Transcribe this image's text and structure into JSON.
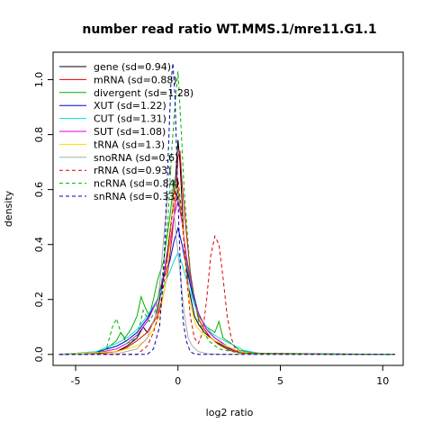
{
  "chart_data": {
    "type": "line",
    "title": "number read ratio WT.MMS.1/mre11.G1.1",
    "xlabel": "log2 ratio",
    "ylabel": "density",
    "xlim": [
      -6.1,
      11.0
    ],
    "ylim": [
      -0.04,
      1.1
    ],
    "xticks": [
      -5,
      0,
      5,
      10
    ],
    "yticks": [
      0.0,
      0.2,
      0.4,
      0.6,
      0.8,
      1.0
    ],
    "grid": false,
    "legend_position": "top-left",
    "series": [
      {
        "name": "gene (sd=0.94)",
        "color": "#000000",
        "dash": "solid",
        "x": [
          -5.8,
          -4.0,
          -3.0,
          -2.5,
          -2.0,
          -1.7,
          -1.5,
          -1.2,
          -1.0,
          -0.8,
          -0.5,
          -0.3,
          -0.1,
          0.0,
          0.1,
          0.2,
          0.3,
          0.5,
          0.8,
          1.0,
          1.3,
          1.6,
          2.0,
          2.5,
          3.0,
          4.0,
          10.6
        ],
        "y": [
          0.0,
          0.003,
          0.01,
          0.03,
          0.06,
          0.1,
          0.08,
          0.12,
          0.16,
          0.24,
          0.38,
          0.5,
          0.66,
          0.78,
          0.7,
          0.55,
          0.4,
          0.25,
          0.14,
          0.11,
          0.08,
          0.06,
          0.04,
          0.02,
          0.01,
          0.002,
          0.0
        ]
      },
      {
        "name": "mRNA (sd=0.88)",
        "color": "#df0000",
        "dash": "solid",
        "x": [
          -5.8,
          -4.0,
          -3.0,
          -2.5,
          -2.0,
          -1.5,
          -1.0,
          -0.7,
          -0.5,
          -0.3,
          -0.1,
          0.0,
          0.1,
          0.2,
          0.4,
          0.6,
          0.8,
          1.0,
          1.3,
          1.6,
          2.0,
          2.5,
          3.0,
          4.0,
          10.6
        ],
        "y": [
          0.0,
          0.003,
          0.01,
          0.025,
          0.05,
          0.08,
          0.14,
          0.22,
          0.3,
          0.42,
          0.58,
          0.72,
          0.74,
          0.62,
          0.45,
          0.3,
          0.2,
          0.13,
          0.09,
          0.06,
          0.035,
          0.015,
          0.007,
          0.001,
          0.0
        ]
      },
      {
        "name": "divergent (sd=1.28)",
        "color": "#00b000",
        "dash": "solid",
        "x": [
          -5.8,
          -4.0,
          -3.5,
          -3.0,
          -2.8,
          -2.6,
          -2.3,
          -2.0,
          -1.8,
          -1.6,
          -1.4,
          -1.2,
          -1.0,
          -0.7,
          -0.4,
          -0.2,
          0.0,
          0.2,
          0.4,
          0.6,
          1.0,
          1.4,
          1.8,
          2.0,
          2.2,
          2.6,
          3.0,
          4.0,
          10.6
        ],
        "y": [
          0.0,
          0.005,
          0.02,
          0.05,
          0.08,
          0.06,
          0.09,
          0.14,
          0.21,
          0.17,
          0.14,
          0.2,
          0.27,
          0.34,
          0.5,
          0.63,
          0.6,
          0.48,
          0.35,
          0.26,
          0.14,
          0.1,
          0.08,
          0.12,
          0.06,
          0.04,
          0.015,
          0.003,
          0.0
        ]
      },
      {
        "name": "XUT (sd=1.22)",
        "color": "#0000dd",
        "dash": "solid",
        "x": [
          -5.8,
          -4.0,
          -3.0,
          -2.5,
          -2.0,
          -1.5,
          -1.0,
          -0.7,
          -0.4,
          -0.2,
          0.0,
          0.2,
          0.4,
          0.7,
          1.0,
          1.4,
          1.8,
          2.2,
          2.6,
          3.0,
          4.0,
          10.6
        ],
        "y": [
          0.0,
          0.008,
          0.03,
          0.05,
          0.08,
          0.13,
          0.2,
          0.28,
          0.34,
          0.41,
          0.46,
          0.4,
          0.32,
          0.22,
          0.15,
          0.09,
          0.06,
          0.04,
          0.02,
          0.01,
          0.002,
          0.0
        ]
      },
      {
        "name": "CUT (sd=1.31)",
        "color": "#00dddd",
        "dash": "solid",
        "x": [
          -5.8,
          -4.0,
          -3.0,
          -2.5,
          -2.0,
          -1.5,
          -1.0,
          -0.7,
          -0.4,
          -0.2,
          0.0,
          0.2,
          0.5,
          0.8,
          1.2,
          1.6,
          2.0,
          2.4,
          2.8,
          3.2,
          4.0,
          10.6
        ],
        "y": [
          0.0,
          0.01,
          0.04,
          0.06,
          0.09,
          0.14,
          0.2,
          0.25,
          0.3,
          0.34,
          0.37,
          0.33,
          0.25,
          0.18,
          0.12,
          0.08,
          0.06,
          0.045,
          0.03,
          0.015,
          0.004,
          0.0
        ]
      },
      {
        "name": "SUT (sd=1.08)",
        "color": "#dd00dd",
        "dash": "solid",
        "x": [
          -5.8,
          -4.0,
          -3.0,
          -2.5,
          -2.0,
          -1.5,
          -1.0,
          -0.7,
          -0.4,
          -0.2,
          0.0,
          0.2,
          0.4,
          0.7,
          1.0,
          1.4,
          1.8,
          2.2,
          2.6,
          3.0,
          4.0,
          10.6
        ],
        "y": [
          0.0,
          0.005,
          0.02,
          0.04,
          0.07,
          0.12,
          0.2,
          0.29,
          0.4,
          0.5,
          0.56,
          0.48,
          0.36,
          0.24,
          0.15,
          0.09,
          0.06,
          0.04,
          0.02,
          0.01,
          0.002,
          0.0
        ]
      },
      {
        "name": "tRNA (sd=1.3)",
        "color": "#ffd800",
        "dash": "solid",
        "x": [
          -5.8,
          -3.0,
          -2.0,
          -1.6,
          -1.2,
          -0.9,
          -0.6,
          -0.4,
          -0.2,
          0.0,
          0.2,
          0.4,
          0.6,
          0.9,
          1.3,
          1.8,
          2.4,
          3.0,
          4.0,
          10.6
        ],
        "y": [
          0.0,
          0.01,
          0.03,
          0.05,
          0.09,
          0.14,
          0.26,
          0.42,
          0.58,
          0.62,
          0.5,
          0.3,
          0.18,
          0.1,
          0.07,
          0.05,
          0.03,
          0.01,
          0.002,
          0.0
        ]
      },
      {
        "name": "snoRNA (sd=0.6)",
        "color": "#aaaaaa",
        "dash": "solid",
        "x": [
          -5.8,
          -3.0,
          -2.0,
          -1.5,
          -1.1,
          -0.9,
          -0.7,
          -0.5,
          -0.3,
          -0.1,
          0.1,
          0.3,
          0.5,
          0.7,
          1.0,
          1.5,
          2.0,
          10.6
        ],
        "y": [
          0.0,
          0.002,
          0.02,
          0.06,
          0.14,
          0.25,
          0.42,
          0.58,
          0.6,
          0.44,
          0.3,
          0.15,
          0.06,
          0.03,
          0.01,
          0.002,
          0.0,
          0.0
        ]
      },
      {
        "name": "rRNA (sd=0.93)",
        "color": "#df0000",
        "dash": "dashed",
        "x": [
          -5.8,
          -2.0,
          -1.5,
          -1.2,
          -0.9,
          -0.6,
          -0.4,
          -0.2,
          0.0,
          0.2,
          0.4,
          0.6,
          0.8,
          1.0,
          1.2,
          1.4,
          1.6,
          1.8,
          2.0,
          2.2,
          2.4,
          2.6,
          2.8,
          3.0,
          10.6
        ],
        "y": [
          0.0,
          0.0,
          0.03,
          0.08,
          0.16,
          0.3,
          0.44,
          0.56,
          0.64,
          0.5,
          0.3,
          0.14,
          0.06,
          0.04,
          0.08,
          0.2,
          0.36,
          0.43,
          0.4,
          0.28,
          0.14,
          0.06,
          0.02,
          0.005,
          0.0
        ]
      },
      {
        "name": "ncRNA (sd=0.84)",
        "color": "#00b000",
        "dash": "dashed",
        "x": [
          -5.8,
          -4.0,
          -3.5,
          -3.2,
          -3.0,
          -2.8,
          -2.5,
          -2.0,
          -1.7,
          -1.4,
          -1.1,
          -0.8,
          -0.5,
          -0.3,
          -0.1,
          0.0,
          0.1,
          0.3,
          0.6,
          1.0,
          1.5,
          2.0,
          3.0,
          10.6
        ],
        "y": [
          0.0,
          0.0,
          0.02,
          0.1,
          0.13,
          0.08,
          0.04,
          0.06,
          0.16,
          0.12,
          0.16,
          0.26,
          0.48,
          0.75,
          0.95,
          1.03,
          0.9,
          0.6,
          0.3,
          0.12,
          0.05,
          0.02,
          0.005,
          0.0
        ]
      },
      {
        "name": "snRNA (sd=0.33)",
        "color": "#0000aa",
        "dash": "dashed",
        "x": [
          -5.8,
          -1.5,
          -1.2,
          -0.9,
          -0.7,
          -0.5,
          -0.35,
          -0.25,
          -0.15,
          -0.05,
          0.05,
          0.15,
          0.25,
          0.4,
          0.6,
          0.8,
          1.0,
          10.6
        ],
        "y": [
          0.0,
          0.0,
          0.02,
          0.1,
          0.3,
          0.68,
          0.98,
          1.06,
          0.94,
          0.7,
          0.45,
          0.25,
          0.12,
          0.05,
          0.01,
          0.002,
          0.0,
          0.0
        ]
      }
    ]
  }
}
